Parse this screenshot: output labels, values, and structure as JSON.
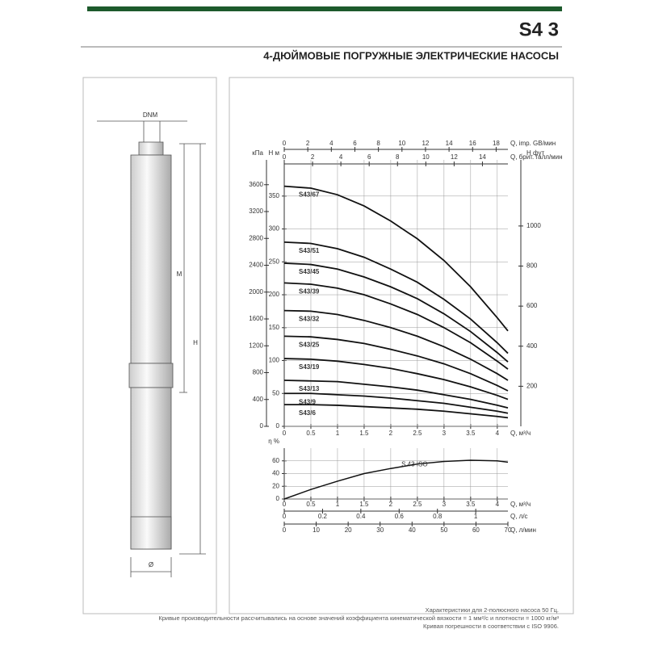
{
  "header": {
    "title": "S4 3",
    "subtitle": "4-ДЮЙМОВЫЕ ПОГРУЖНЫЕ ЭЛЕКТРИЧЕСКИЕ НАСОСЫ"
  },
  "drawing": {
    "labels": {
      "dnm": "DNM",
      "motor": "M",
      "height": "H",
      "diameter": "Ø"
    }
  },
  "performance_chart": {
    "q_axis": {
      "label": "Q, м³/ч",
      "lim": [
        0,
        4.2
      ],
      "ticks": [
        0,
        0.5,
        1,
        1.5,
        2,
        2.5,
        3,
        3.5,
        4
      ]
    },
    "imp_axis": {
      "label": "Q, imp. GB/мин",
      "lim": [
        0,
        19
      ],
      "ticks": [
        0,
        2,
        4,
        6,
        8,
        10,
        12,
        14,
        16,
        18
      ]
    },
    "us_axis": {
      "label": "Q, брит. галл/мин",
      "lim": [
        0,
        15.8
      ],
      "ticks": [
        0,
        2,
        4,
        6,
        8,
        10,
        12,
        14
      ]
    },
    "h_axis": {
      "label": "H м",
      "lim": [
        0,
        405
      ],
      "ticks": [
        0,
        50,
        100,
        150,
        200,
        250,
        300,
        350
      ]
    },
    "kpa_axis": {
      "label": "кПа",
      "lim": [
        0,
        3970
      ],
      "ticks": [
        0,
        400,
        800,
        1200,
        1600,
        2000,
        2400,
        2800,
        3200,
        3600
      ]
    },
    "ft_axis": {
      "label": "H фут",
      "lim": [
        0,
        1330
      ],
      "ticks": [
        200,
        400,
        600,
        800,
        1000
      ]
    },
    "q": [
      0,
      0.5,
      1,
      1.5,
      2,
      2.5,
      3,
      3.5,
      4,
      4.2
    ],
    "curves": [
      {
        "name": "S43/67",
        "values": [
          365,
          362,
          352,
          335,
          312,
          285,
          252,
          212,
          165,
          145
        ]
      },
      {
        "name": "S43/51",
        "values": [
          280,
          278,
          270,
          257,
          239,
          219,
          193,
          163,
          127,
          111
        ]
      },
      {
        "name": "S43/45",
        "values": [
          248,
          246,
          239,
          227,
          212,
          194,
          171,
          144,
          112,
          98
        ]
      },
      {
        "name": "S43/39",
        "values": [
          218,
          216,
          210,
          200,
          186,
          170,
          150,
          127,
          99,
          87
        ]
      },
      {
        "name": "S43/32",
        "values": [
          176,
          175,
          170,
          161,
          150,
          137,
          121,
          102,
          80,
          70
        ]
      },
      {
        "name": "S43/25",
        "values": [
          137,
          136,
          132,
          126,
          117,
          107,
          95,
          80,
          62,
          54
        ]
      },
      {
        "name": "S43/19",
        "values": [
          103,
          102,
          99,
          94,
          88,
          80,
          71,
          60,
          47,
          41
        ]
      },
      {
        "name": "S43/13",
        "values": [
          70,
          69,
          68,
          64,
          60,
          55,
          48,
          41,
          32,
          28
        ]
      },
      {
        "name": "S43/9",
        "values": [
          50,
          50,
          48,
          46,
          43,
          39,
          35,
          29,
          23,
          20
        ]
      },
      {
        "name": "S43/6",
        "values": [
          33,
          33,
          32,
          30,
          28,
          26,
          23,
          19,
          15,
          13
        ]
      }
    ]
  },
  "efficiency_chart": {
    "y_axis": {
      "label": "η %",
      "lim": [
        0,
        80
      ],
      "ticks": [
        0,
        20,
        40,
        60
      ]
    },
    "curve_label": "S 43 ISO",
    "values": [
      0,
      15,
      28,
      40,
      48,
      55,
      59,
      61,
      60,
      58
    ],
    "ls_axis": {
      "label": "Q, л/с",
      "lim": [
        0,
        1.168
      ],
      "ticks": [
        0,
        0.2,
        0.4,
        0.6,
        0.8,
        1
      ]
    },
    "lmin_axis": {
      "label": "Q, л/мин",
      "lim": [
        0,
        70
      ],
      "ticks": [
        0,
        10,
        20,
        30,
        40,
        50,
        60,
        70
      ]
    }
  },
  "footnotes": [
    "Характеристики для 2-полюсного насоса 50 Гц.",
    "Кривые производительности рассчитывались на основе значений коэффициента кинематической вязкости = 1 мм²/с и плотности = 1000 кг/м³",
    "Кривая погрешности в соответствии с ISO 9906."
  ]
}
